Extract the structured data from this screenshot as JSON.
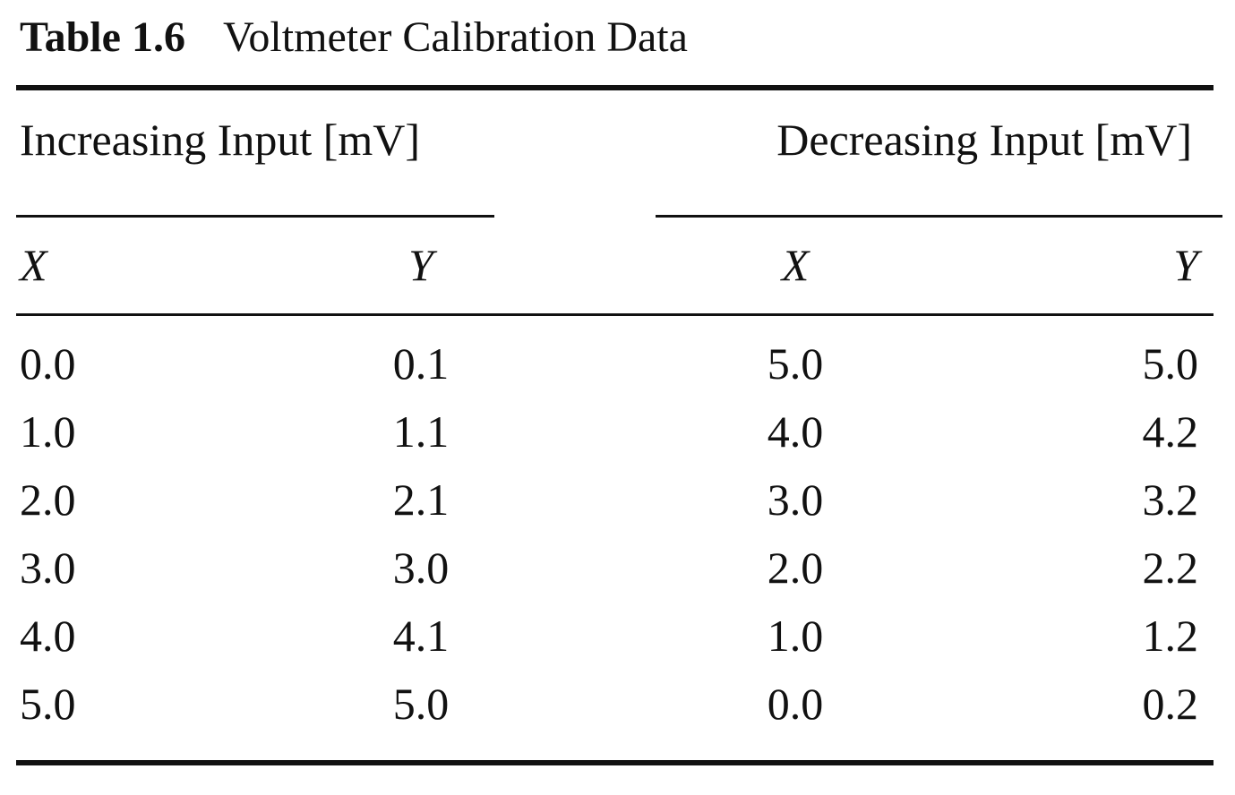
{
  "title": {
    "label": "Table 1.6",
    "text": "Voltmeter Calibration Data"
  },
  "groups": [
    "Increasing Input [mV]",
    "Decreasing Input [mV]"
  ],
  "columns": [
    "X",
    "Y",
    "X",
    "Y"
  ],
  "rows": [
    [
      "0.0",
      "0.1",
      "5.0",
      "5.0"
    ],
    [
      "1.0",
      "1.1",
      "4.0",
      "4.2"
    ],
    [
      "2.0",
      "2.1",
      "3.0",
      "3.2"
    ],
    [
      "3.0",
      "3.0",
      "2.0",
      "2.2"
    ],
    [
      "4.0",
      "4.1",
      "1.0",
      "1.2"
    ],
    [
      "5.0",
      "5.0",
      "0.0",
      "0.2"
    ]
  ]
}
